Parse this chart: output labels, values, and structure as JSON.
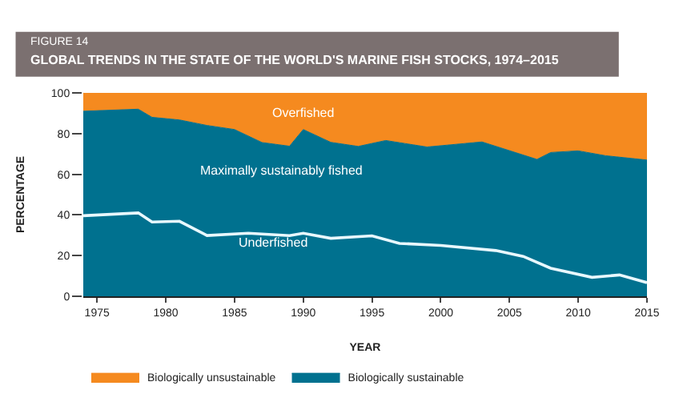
{
  "chart_data": {
    "type": "area",
    "stacked": true,
    "subtitle": "FIGURE 14",
    "title": "GLOBAL TRENDS IN THE STATE OF THE WORLD'S MARINE FISH STOCKS, 1974–2015",
    "xlabel": "YEAR",
    "ylabel": "PERCENTAGE",
    "x": [
      1974,
      1978,
      1979,
      1981,
      1983,
      1985,
      1987,
      1989,
      1990,
      1992,
      1994,
      1996,
      1999,
      2003,
      2007,
      2008,
      2010,
      2012,
      2015
    ],
    "series": [
      {
        "name": "Biologically sustainable",
        "color": "#00718f",
        "values": [
          91,
          92,
          88,
          86.7,
          84,
          82,
          75.6,
          73.8,
          82,
          75.7,
          73.7,
          76.6,
          73.4,
          75.9,
          67.3,
          70.7,
          71.5,
          69.1,
          67
        ]
      },
      {
        "name": "Biologically unsustainable",
        "color": "#f58a1f",
        "values": [
          9,
          8,
          12,
          13.3,
          16,
          18,
          24.4,
          26.2,
          18,
          24.3,
          26.3,
          23.4,
          26.6,
          24.1,
          32.7,
          29.3,
          28.5,
          30.9,
          33
        ]
      },
      {
        "type": "line",
        "color": "#e8f8ff",
        "x": [
          1974,
          1978,
          1979,
          1981,
          1983,
          1986,
          1989,
          1990,
          1992,
          1995,
          1997,
          2000,
          2004,
          2006,
          2008,
          2011,
          2013,
          2015
        ],
        "values": [
          39.6,
          41,
          36.5,
          36.9,
          29.9,
          31,
          29.8,
          31,
          28.5,
          29.7,
          26,
          25,
          22.5,
          19.6,
          13.8,
          9.3,
          10.5,
          6.7
        ]
      }
    ],
    "annotations": [
      "Overfished",
      "Maximally sustainably fished",
      "Underfished"
    ],
    "xlim": [
      1974,
      2015
    ],
    "xticks": [
      1975,
      1980,
      1985,
      1990,
      1995,
      2000,
      2005,
      2010,
      2015
    ],
    "ylim": [
      0,
      100
    ],
    "yticks": [
      0,
      20,
      40,
      60,
      80,
      100
    ],
    "legend": "bottom",
    "marker": "none"
  }
}
